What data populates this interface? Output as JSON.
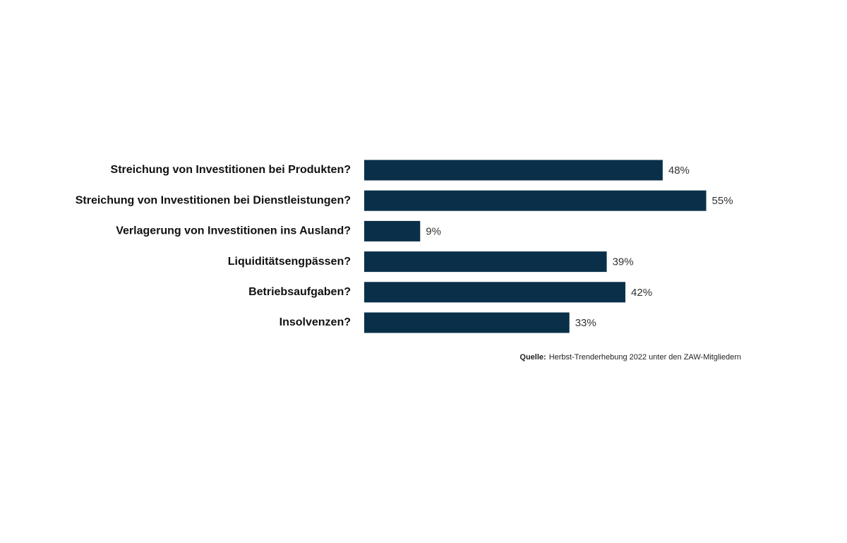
{
  "chart_data": {
    "type": "bar",
    "orientation": "horizontal",
    "categories": [
      "Streichung von Investitionen bei Produkten?",
      "Streichung von Investitionen bei Dienstleistungen?",
      "Verlagerung von Investitionen ins Ausland?",
      "Liquiditätsengpässen?",
      "Betriebsaufgaben?",
      "Insolvenzen?"
    ],
    "values": [
      48,
      55,
      9,
      39,
      42,
      33
    ],
    "value_labels": [
      "48%",
      "55%",
      "9%",
      "39%",
      "42%",
      "33%"
    ],
    "color": "#0a3049",
    "source_label": "Quelle:",
    "source": "Herbst-Trenderhebung 2022 unter den ZAW-Mitgliedern"
  }
}
